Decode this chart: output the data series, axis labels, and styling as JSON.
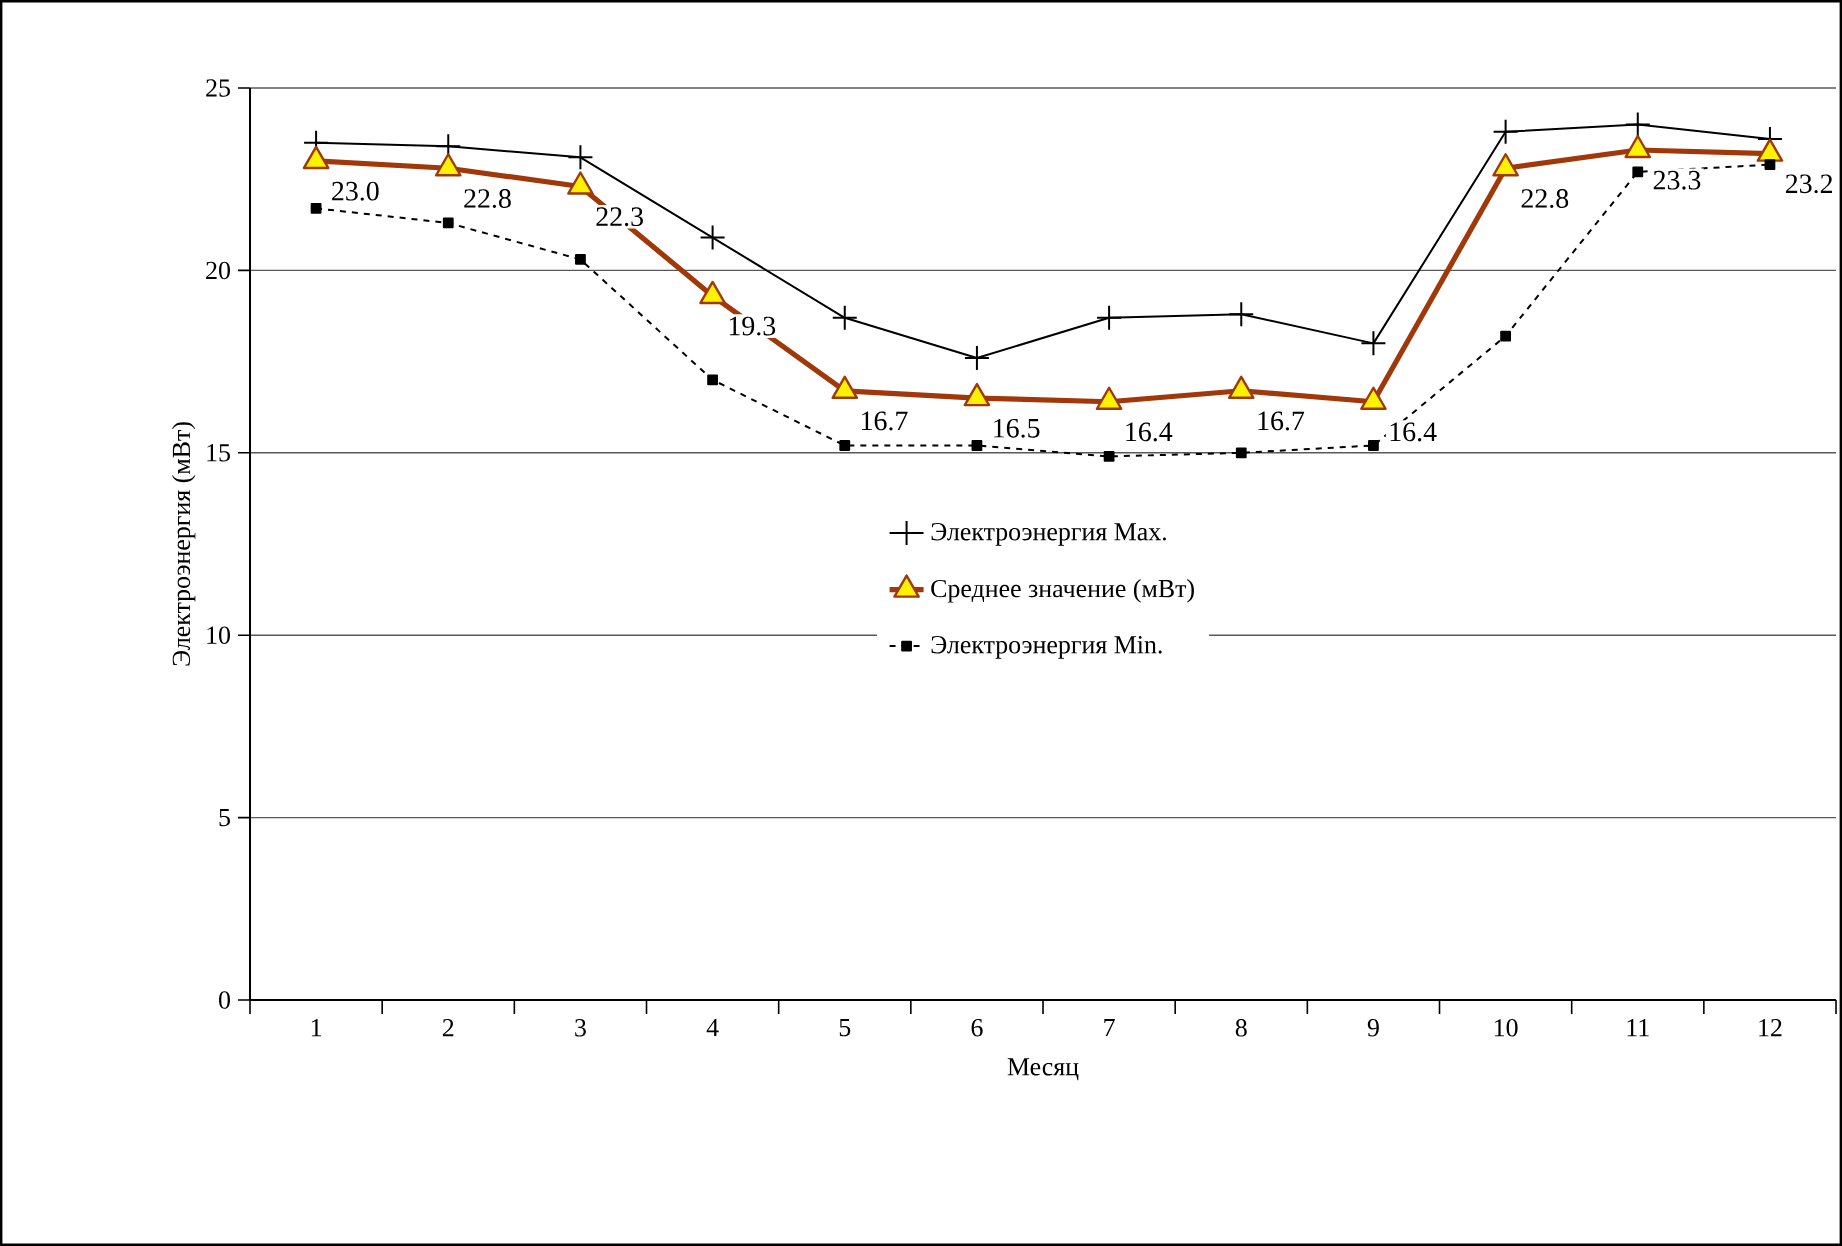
{
  "chart_data": {
    "type": "line",
    "xlabel": "Месяц",
    "ylabel": "Электроэнергия (мВт)",
    "categories": [
      "1",
      "2",
      "3",
      "4",
      "5",
      "6",
      "7",
      "8",
      "9",
      "10",
      "11",
      "12"
    ],
    "series": [
      {
        "name": "Электроэнергия Max.",
        "color": "#000000",
        "marker": "cross",
        "line_style": "solid",
        "values": [
          23.5,
          23.4,
          23.1,
          20.9,
          18.7,
          17.6,
          18.7,
          18.8,
          18.0,
          23.8,
          24.0,
          23.6
        ]
      },
      {
        "name": "Среднее значение (мВт)",
        "color": "#a0380a",
        "marker": "triangle",
        "line_style": "solid",
        "values": [
          23.0,
          22.8,
          22.3,
          19.3,
          16.7,
          16.5,
          16.4,
          16.7,
          16.4,
          22.8,
          23.3,
          23.2
        ],
        "value_labels": [
          "23.0",
          "22.8",
          "22.3",
          "19.3",
          "16.7",
          "16.5",
          "16.4",
          "16.7",
          "16.4",
          "22.8",
          "23.3",
          "23.2"
        ]
      },
      {
        "name": "Электроэнергия Min.",
        "color": "#000000",
        "marker": "square",
        "line_style": "dashed",
        "values": [
          21.7,
          21.3,
          20.3,
          17.0,
          15.2,
          15.2,
          14.9,
          15.0,
          15.2,
          18.2,
          22.7,
          22.9
        ]
      }
    ],
    "ylim": [
      0,
      25
    ],
    "yticks": [
      0,
      5,
      10,
      15,
      20,
      25
    ],
    "grid": "y",
    "legend": "center"
  }
}
